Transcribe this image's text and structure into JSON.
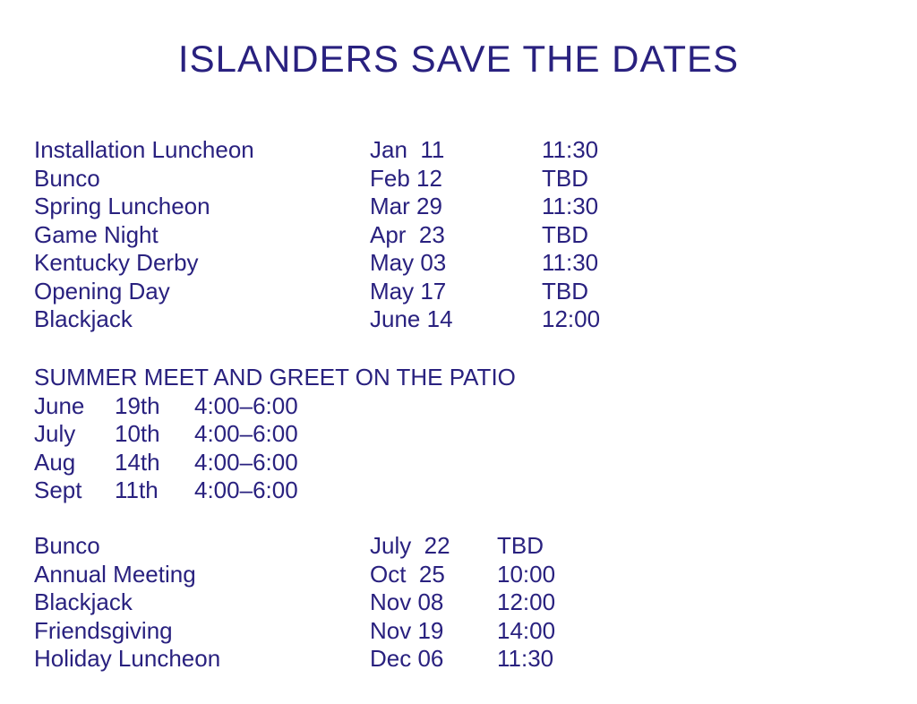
{
  "page": {
    "background_color": "#ffffff",
    "text_color": "#29217f"
  },
  "title": "ISLANDERS SAVE THE DATES",
  "sections": [
    {
      "rows": [
        {
          "event": "Installation Luncheon",
          "date": "Jan  11",
          "time": "11:30"
        },
        {
          "event": "Bunco",
          "date": "Feb 12",
          "time": "TBD"
        },
        {
          "event": "Spring Luncheon",
          "date": "Mar 29",
          "time": "11:30"
        },
        {
          "event": "Game Night",
          "date": "Apr  23",
          "time": "TBD"
        },
        {
          "event": "Kentucky Derby",
          "date": "May 03",
          "time": "11:30"
        },
        {
          "event": "Opening Day",
          "date": "May 17",
          "time": "TBD"
        },
        {
          "event": "Blackjack",
          "date": "June 14",
          "time": "12:00"
        }
      ]
    },
    {
      "heading": "SUMMER MEET AND GREET ON THE PATIO",
      "rows": [
        {
          "month": "June",
          "day": "19th",
          "time": "4:00–6:00"
        },
        {
          "month": "July",
          "day": "10th",
          "time": "4:00–6:00"
        },
        {
          "month": "Aug",
          "day": "14th",
          "time": "4:00–6:00"
        },
        {
          "month": "Sept",
          "day": "11th",
          "time": "4:00–6:00"
        }
      ]
    },
    {
      "rows": [
        {
          "event": "Bunco",
          "date": "July  22",
          "time": "TBD"
        },
        {
          "event": "Annual Meeting",
          "date": "Oct  25",
          "time": "10:00"
        },
        {
          "event": "Blackjack",
          "date": "Nov 08",
          "time": "12:00"
        },
        {
          "event": "Friendsgiving",
          "date": "Nov 19",
          "time": "14:00"
        },
        {
          "event": "Holiday Luncheon",
          "date": "Dec 06",
          "time": "11:30"
        }
      ]
    }
  ]
}
